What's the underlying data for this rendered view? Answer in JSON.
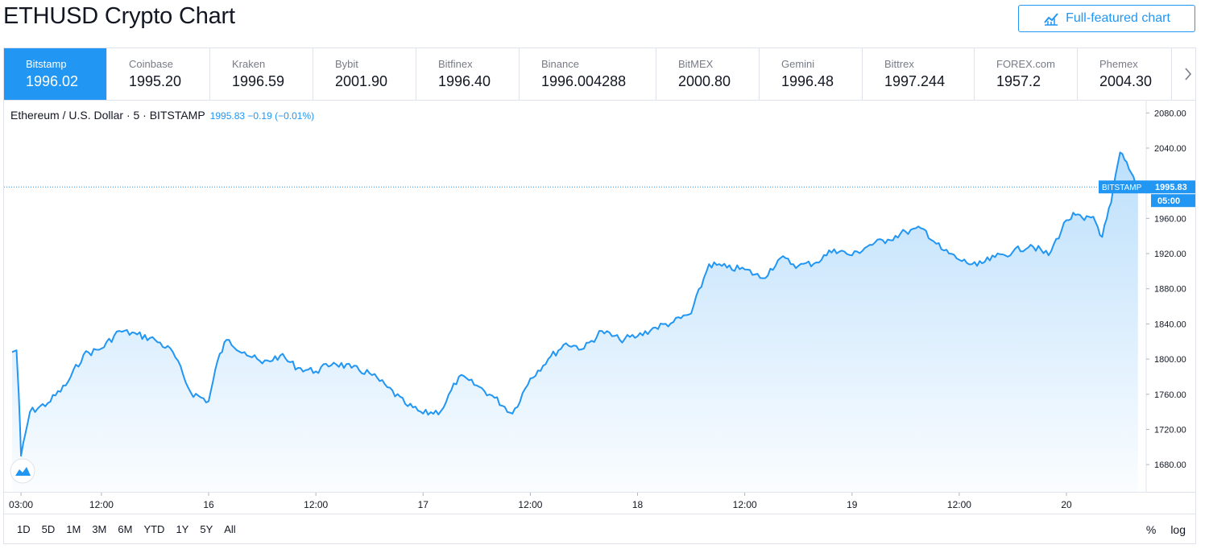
{
  "header": {
    "title": "ETHUSD Crypto Chart",
    "full_chart_label": "Full-featured chart"
  },
  "exchanges": [
    {
      "name": "Bitstamp",
      "price": "1996.02",
      "active": true
    },
    {
      "name": "Coinbase",
      "price": "1995.20"
    },
    {
      "name": "Kraken",
      "price": "1996.59"
    },
    {
      "name": "Bybit",
      "price": "2001.90"
    },
    {
      "name": "Bitfinex",
      "price": "1996.40"
    },
    {
      "name": "Binance",
      "price": "1996.004288"
    },
    {
      "name": "BitMEX",
      "price": "2000.80"
    },
    {
      "name": "Gemini",
      "price": "1996.48"
    },
    {
      "name": "Bittrex",
      "price": "1997.244"
    },
    {
      "name": "FOREX.com",
      "price": "1957.2"
    },
    {
      "name": "Phemex",
      "price": "2004.30"
    }
  ],
  "legend": {
    "symbol": "Ethereum / U.S. Dollar · 5 · BITSTAMP",
    "values": "1995.83 −0.19 (−0.01%)"
  },
  "price_tag": {
    "exchange": "BITSTAMP",
    "price": "1995.83",
    "countdown": "05:00"
  },
  "colors": {
    "accent": "#2196f3",
    "line": "#2196f3"
  },
  "range_buttons": [
    "1D",
    "5D",
    "1M",
    "3M",
    "6M",
    "YTD",
    "1Y",
    "5Y",
    "All"
  ],
  "scale_buttons": [
    "%",
    "log"
  ],
  "chart_data": {
    "type": "area",
    "title": "Ethereum / U.S. Dollar · 5 · BITSTAMP",
    "xlabel": "",
    "ylabel": "",
    "ylim": [
      1649,
      2094
    ],
    "y_ticks": [
      "2080.00",
      "2040.00",
      "1960.00",
      "1920.00",
      "1880.00",
      "1840.00",
      "1800.00",
      "1760.00",
      "1720.00",
      "1680.00"
    ],
    "x_ticks": [
      "03:00",
      "12:00",
      "16",
      "12:00",
      "17",
      "12:00",
      "18",
      "12:00",
      "19",
      "12:00",
      "20"
    ],
    "last_price": 1995.83,
    "series": [
      {
        "x": [
          "15 02:00",
          "15 02:30",
          "15 02:45",
          "15 03:00",
          "15 04:00",
          "15 06:00",
          "15 08:00",
          "15 10:00",
          "15 12:00",
          "15 14:00",
          "15 16:00",
          "15 18:00",
          "15 20:00",
          "15 22:00",
          "16 00:00",
          "16 01:00",
          "16 02:00",
          "16 04:00",
          "16 06:00",
          "16 08:00",
          "16 10:00",
          "16 12:00",
          "16 14:00",
          "16 16:00",
          "16 18:00",
          "16 20:00",
          "16 22:00",
          "17 00:00",
          "17 02:00",
          "17 04:00",
          "17 06:00",
          "17 08:00",
          "17 10:00",
          "17 12:00",
          "17 14:00",
          "17 16:00",
          "17 18:00",
          "17 20:00",
          "17 22:00",
          "18 00:00",
          "18 02:00",
          "18 04:00",
          "18 06:00",
          "18 08:00",
          "18 10:00",
          "18 12:00",
          "18 14:00",
          "18 16:00",
          "18 18:00",
          "18 20:00",
          "18 22:00",
          "19 00:00",
          "19 02:00",
          "19 04:00",
          "19 06:00",
          "19 08:00",
          "19 10:00",
          "19 12:00",
          "19 14:00",
          "19 16:00",
          "19 18:00",
          "19 20:00",
          "19 22:00",
          "20 00:00",
          "20 01:00",
          "20 02:00",
          "20 03:00",
          "20 04:00",
          "20 05:00",
          "20 06:00",
          "20 07:00",
          "20 08:00"
        ],
        "values": [
          1808,
          1810,
          1760,
          1690,
          1740,
          1750,
          1770,
          1805,
          1812,
          1832,
          1828,
          1822,
          1808,
          1762,
          1752,
          1798,
          1822,
          1808,
          1795,
          1804,
          1790,
          1786,
          1796,
          1790,
          1784,
          1768,
          1749,
          1738,
          1741,
          1780,
          1770,
          1756,
          1738,
          1778,
          1800,
          1818,
          1812,
          1832,
          1822,
          1826,
          1836,
          1842,
          1852,
          1908,
          1904,
          1902,
          1892,
          1915,
          1906,
          1910,
          1925,
          1918,
          1930,
          1936,
          1945,
          1948,
          1925,
          1913,
          1906,
          1916,
          1922,
          1930,
          1918,
          1958,
          1964,
          1958,
          1962,
          1939,
          1978,
          2035,
          2016,
          1996
        ]
      }
    ]
  }
}
